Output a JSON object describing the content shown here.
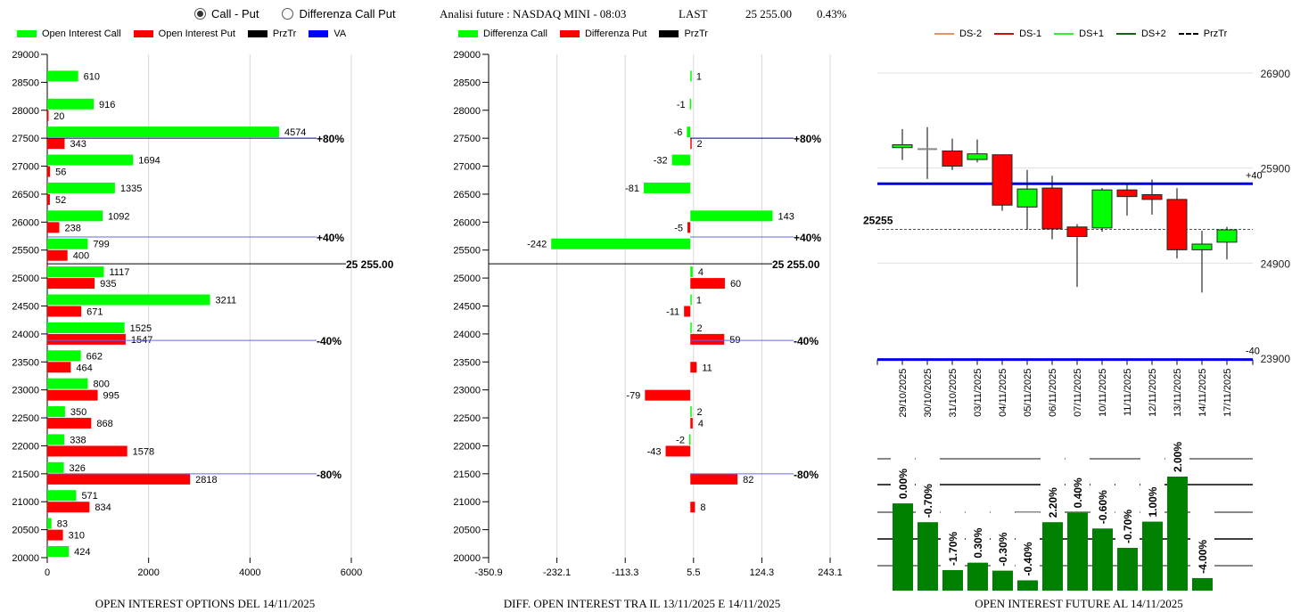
{
  "controls": {
    "radio_options": [
      {
        "label": "Call - Put",
        "selected": true
      },
      {
        "label": "Differenza Call Put",
        "selected": false
      }
    ]
  },
  "header": {
    "analysis": "Analisi future : NASDAQ MINI - 08:03",
    "last_label": "LAST",
    "last_value": "25 255.00",
    "change": "0.43%"
  },
  "colors": {
    "call": "#00ff00",
    "put": "#ff0000",
    "przTr": "#000000",
    "va": "#0000ff",
    "dark_green": "#008000",
    "ds_minus2": "#e8906a",
    "ds_minus1": "#cc1111",
    "ds_plus1": "#33ee33",
    "ds_plus2": "#116611"
  },
  "chart_data": [
    {
      "type": "bar",
      "orientation": "horizontal",
      "title": "OPEN INTEREST OPTIONS DEL 14/11/2025",
      "legend": [
        "Open Interest Call",
        "Open Interest Put",
        "PrzTr",
        "VA"
      ],
      "legend_position": "top",
      "categories": [
        29000,
        28500,
        28000,
        27500,
        27000,
        26500,
        26000,
        25500,
        25000,
        24500,
        24000,
        23500,
        23000,
        22500,
        22000,
        21500,
        21000,
        20500,
        20000
      ],
      "series": [
        {
          "name": "Open Interest Call",
          "values": [
            null,
            610,
            916,
            4574,
            1694,
            1335,
            1092,
            799,
            1117,
            3211,
            1525,
            662,
            800,
            350,
            338,
            326,
            571,
            83,
            424
          ]
        },
        {
          "name": "Open Interest Put",
          "values": [
            null,
            null,
            20,
            343,
            56,
            52,
            238,
            400,
            935,
            671,
            1547,
            464,
            995,
            868,
            1578,
            2818,
            834,
            310,
            null
          ]
        }
      ],
      "xlim": [
        0,
        6000
      ],
      "xticks": [
        "0",
        "2000",
        "4000",
        "6000"
      ],
      "ylim": [
        20000,
        29000
      ],
      "reference_lines": [
        {
          "label": "+80%",
          "y": 27500
        },
        {
          "label": "+40%",
          "y": 25735
        },
        {
          "label": "-40%",
          "y": 23885
        },
        {
          "label": "-80%",
          "y": 21500
        }
      ],
      "price_line": {
        "label": "25 255.00",
        "y": 25255
      },
      "grid": true
    },
    {
      "type": "bar",
      "orientation": "horizontal",
      "title": "DIFF. OPEN INTEREST TRA IL 13/11/2025 E 14/11/2025",
      "legend": [
        "Differenza Call",
        "Differenza Put",
        "PrzTr"
      ],
      "legend_position": "top",
      "categories": [
        29000,
        28500,
        28000,
        27500,
        27000,
        26500,
        26000,
        25500,
        25000,
        24500,
        24000,
        23500,
        23000,
        22500,
        22000,
        21500,
        21000,
        20500,
        20000
      ],
      "series": [
        {
          "name": "Differenza Call",
          "values": [
            null,
            1,
            -1,
            -6,
            -32,
            -81,
            143,
            -242,
            4,
            1,
            2,
            null,
            null,
            2,
            -2,
            null,
            null,
            null,
            null
          ]
        },
        {
          "name": "Differenza Put",
          "values": [
            null,
            null,
            null,
            2,
            null,
            null,
            -5,
            null,
            60,
            -11,
            59,
            11,
            -79,
            4,
            -43,
            82,
            8,
            null,
            null
          ]
        }
      ],
      "xlim": [
        -350.9,
        243.1
      ],
      "xticks": [
        "-350.9",
        "-232.1",
        "-113.3",
        "5.5",
        "124.3",
        "243.1"
      ],
      "ylim": [
        20000,
        29000
      ],
      "reference_lines": [
        {
          "label": "+80%",
          "y": 27500
        },
        {
          "label": "+40%",
          "y": 25735
        },
        {
          "label": "-40%",
          "y": 23885
        },
        {
          "label": "-80%",
          "y": 21500
        }
      ],
      "price_line": {
        "label": "25 255.00",
        "y": 25255
      },
      "grid": true
    },
    {
      "type": "candlestick",
      "legend": [
        "DS-2",
        "DS-1",
        "DS+1",
        "DS+2",
        "PrzTr"
      ],
      "legend_position": "top",
      "dates": [
        "29/10/2025",
        "30/10/2025",
        "31/10/2025",
        "03/11/2025",
        "04/11/2025",
        "05/11/2025",
        "06/11/2025",
        "07/11/2025",
        "10/11/2025",
        "11/11/2025",
        "12/11/2025",
        "13/11/2025",
        "14/11/2025",
        "17/11/2025"
      ],
      "open": [
        26115,
        26100,
        26080,
        25990,
        26040,
        25490,
        25690,
        25280,
        25270,
        25670,
        25620,
        25570,
        25040,
        25120
      ],
      "close": [
        26145,
        26100,
        25920,
        26050,
        25510,
        25680,
        25260,
        25180,
        25670,
        25600,
        25570,
        25040,
        25100,
        25250
      ],
      "high": [
        26310,
        26330,
        26210,
        26200,
        26040,
        25880,
        25820,
        25310,
        25690,
        25730,
        25780,
        25690,
        25240,
        25280
      ],
      "low": [
        25985,
        25785,
        25880,
        25960,
        25450,
        25250,
        25150,
        24650,
        25230,
        25400,
        25410,
        24950,
        24590,
        24940
      ],
      "ylim": [
        23900,
        27000
      ],
      "yticks": [
        "26900",
        "25900",
        "24900",
        "23900"
      ],
      "reference_lines": [
        {
          "label": "+40",
          "y": 25735
        },
        {
          "label": "-40",
          "y": 23885
        }
      ],
      "price_line": {
        "label": "25255",
        "y": 25255
      },
      "grid": true
    },
    {
      "type": "bar",
      "title": "OPEN INTEREST FUTURE AL 14/11/2025",
      "categories": [
        "29/10/2025",
        "30/10/2025",
        "31/10/2025",
        "03/11/2025",
        "04/11/2025",
        "05/11/2025",
        "06/11/2025",
        "07/11/2025",
        "10/11/2025",
        "11/11/2025",
        "12/11/2025",
        "13/11/2025",
        "14/11/2025"
      ],
      "values": [
        0.765,
        0.6,
        0.18,
        0.245,
        0.175,
        0.09,
        0.6,
        0.685,
        0.545,
        0.375,
        0.605,
        1.0,
        0.11
      ],
      "value_scale": "relative height (max = 1)",
      "labels": [
        "0.00%",
        "-0.70%",
        "-1.70%",
        "0.30%",
        "-0.30%",
        "-0.40%",
        "2.20%",
        "0.40%",
        "-0.60%",
        "-0.70%",
        "1.00%",
        "2.00%",
        "-4.00%"
      ],
      "grid": true
    }
  ]
}
